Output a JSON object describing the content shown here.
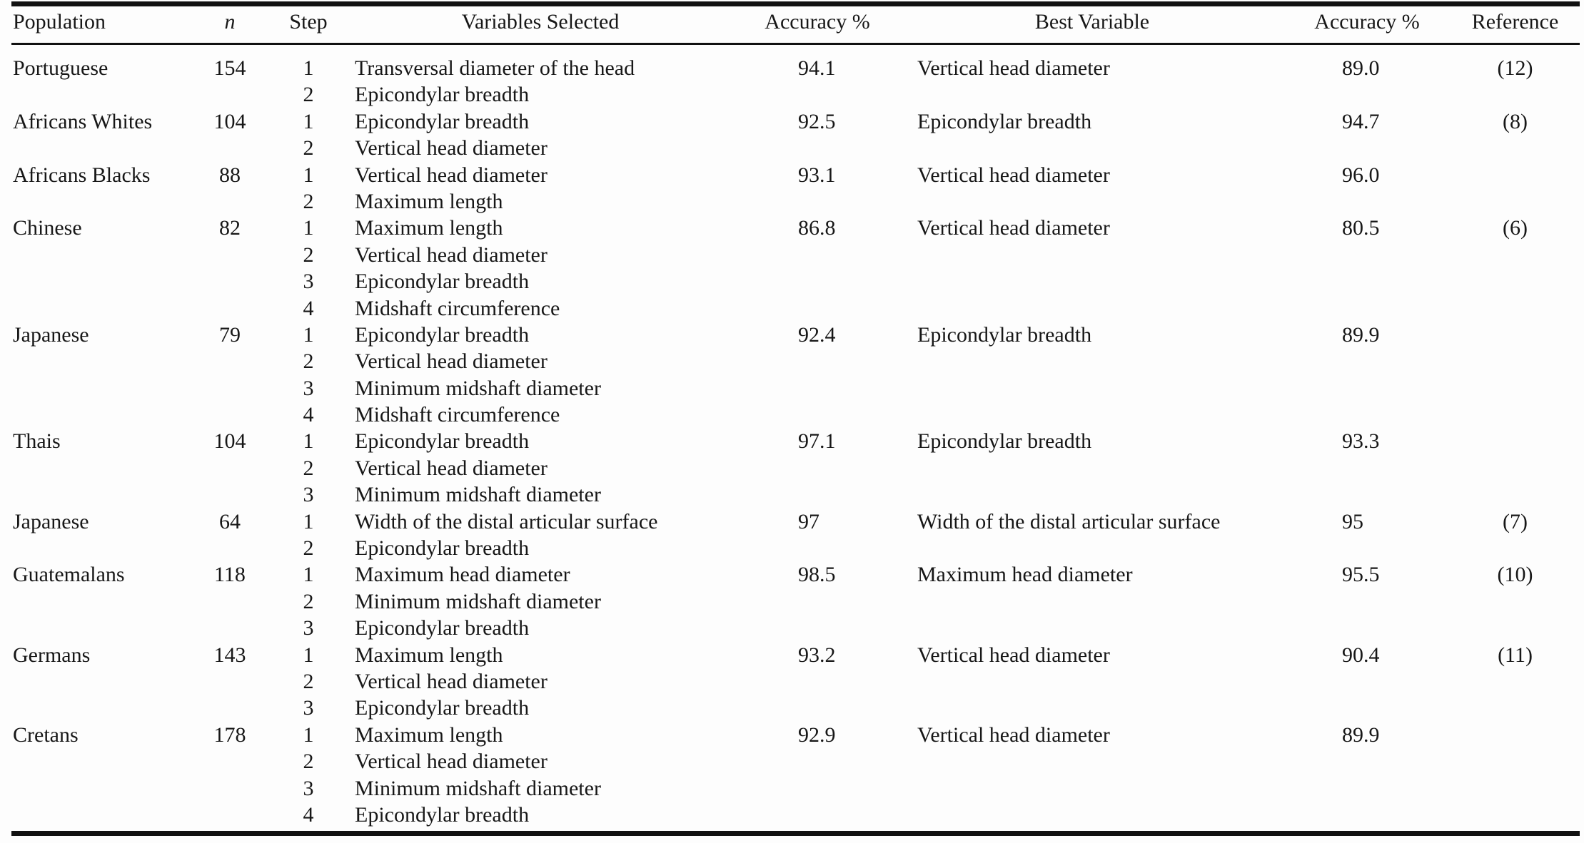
{
  "table": {
    "columns": {
      "population": "Population",
      "n": "n",
      "step": "Step",
      "variables": "Variables Selected",
      "accuracy1": "Accuracy %",
      "best_variable": "Best Variable",
      "accuracy2": "Accuracy %",
      "reference": "Reference"
    },
    "rows": [
      {
        "population": "Portuguese",
        "n": "154",
        "steps": [
          {
            "step": "1",
            "variable": "Transversal diameter of the head"
          },
          {
            "step": "2",
            "variable": "Epicondylar breadth"
          }
        ],
        "accuracy": "94.1",
        "best_variable": "Vertical head diameter",
        "best_accuracy": "89.0",
        "reference": "(12)"
      },
      {
        "population": "Africans Whites",
        "n": "104",
        "steps": [
          {
            "step": "1",
            "variable": "Epicondylar breadth"
          },
          {
            "step": "2",
            "variable": "Vertical head diameter"
          }
        ],
        "accuracy": "92.5",
        "best_variable": "Epicondylar breadth",
        "best_accuracy": "94.7",
        "reference": "(8)"
      },
      {
        "population": "Africans Blacks",
        "n": "88",
        "steps": [
          {
            "step": "1",
            "variable": "Vertical head diameter"
          },
          {
            "step": "2",
            "variable": "Maximum length"
          }
        ],
        "accuracy": "93.1",
        "best_variable": "Vertical head diameter",
        "best_accuracy": "96.0",
        "reference": ""
      },
      {
        "population": "Chinese",
        "n": "82",
        "steps": [
          {
            "step": "1",
            "variable": "Maximum length"
          },
          {
            "step": "2",
            "variable": "Vertical head diameter"
          },
          {
            "step": "3",
            "variable": "Epicondylar breadth"
          },
          {
            "step": "4",
            "variable": "Midshaft circumference"
          }
        ],
        "accuracy": "86.8",
        "best_variable": "Vertical head diameter",
        "best_accuracy": "80.5",
        "reference": "(6)"
      },
      {
        "population": "Japanese",
        "n": "79",
        "steps": [
          {
            "step": "1",
            "variable": "Epicondylar breadth"
          },
          {
            "step": "2",
            "variable": "Vertical head diameter"
          },
          {
            "step": "3",
            "variable": "Minimum midshaft diameter"
          },
          {
            "step": "4",
            "variable": "Midshaft circumference"
          }
        ],
        "accuracy": "92.4",
        "best_variable": "Epicondylar breadth",
        "best_accuracy": "89.9",
        "reference": ""
      },
      {
        "population": "Thais",
        "n": "104",
        "steps": [
          {
            "step": "1",
            "variable": "Epicondylar breadth"
          },
          {
            "step": "2",
            "variable": "Vertical head diameter"
          },
          {
            "step": "3",
            "variable": "Minimum midshaft diameter"
          }
        ],
        "accuracy": "97.1",
        "best_variable": "Epicondylar breadth",
        "best_accuracy": "93.3",
        "reference": ""
      },
      {
        "population": "Japanese",
        "n": "64",
        "steps": [
          {
            "step": "1",
            "variable": "Width of the distal articular surface"
          },
          {
            "step": "2",
            "variable": "Epicondylar breadth"
          }
        ],
        "accuracy": "97",
        "best_variable": "Width of the distal articular surface",
        "best_accuracy": "95",
        "reference": "(7)"
      },
      {
        "population": "Guatemalans",
        "n": "118",
        "steps": [
          {
            "step": "1",
            "variable": "Maximum head diameter"
          },
          {
            "step": "2",
            "variable": "Minimum midshaft diameter"
          },
          {
            "step": "3",
            "variable": "Epicondylar breadth"
          }
        ],
        "accuracy": "98.5",
        "best_variable": "Maximum head diameter",
        "best_accuracy": "95.5",
        "reference": "(10)"
      },
      {
        "population": "Germans",
        "n": "143",
        "steps": [
          {
            "step": "1",
            "variable": "Maximum length"
          },
          {
            "step": "2",
            "variable": "Vertical head diameter"
          },
          {
            "step": "3",
            "variable": "Epicondylar breadth"
          }
        ],
        "accuracy": "93.2",
        "best_variable": "Vertical head diameter",
        "best_accuracy": "90.4",
        "reference": "(11)"
      },
      {
        "population": "Cretans",
        "n": "178",
        "steps": [
          {
            "step": "1",
            "variable": "Maximum length"
          },
          {
            "step": "2",
            "variable": "Vertical head diameter"
          },
          {
            "step": "3",
            "variable": "Minimum midshaft diameter"
          },
          {
            "step": "4",
            "variable": "Epicondylar breadth"
          }
        ],
        "accuracy": "92.9",
        "best_variable": "Vertical head diameter",
        "best_accuracy": "89.9",
        "reference": ""
      }
    ]
  }
}
